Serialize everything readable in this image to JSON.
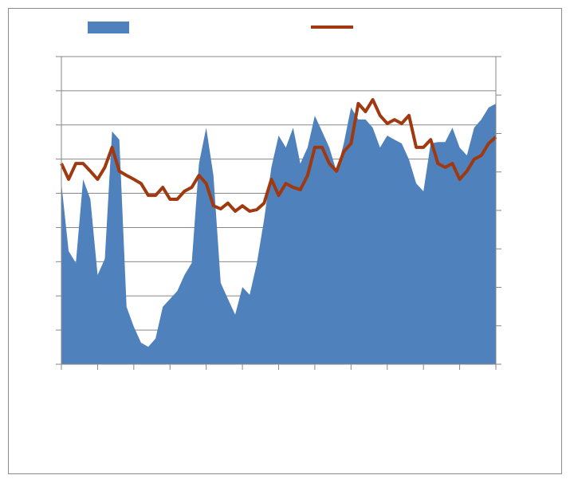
{
  "chart_data": {
    "type": "area-line",
    "x": [
      0,
      0.2,
      0.4,
      0.6,
      0.8,
      1,
      1.2,
      1.4,
      1.6,
      1.8,
      2,
      2.2,
      2.4,
      2.6,
      2.8,
      3,
      3.2,
      3.4,
      3.6,
      3.8,
      4,
      4.2,
      4.4,
      4.6,
      4.8,
      5,
      5.2,
      5.4,
      5.6,
      5.8,
      6,
      6.2,
      6.4,
      6.6,
      6.8,
      7,
      7.2,
      7.4,
      7.6,
      7.8,
      8,
      8.2,
      8.4,
      8.6,
      8.8,
      9,
      9.2,
      9.4,
      9.6,
      9.8,
      10,
      10.2,
      10.4,
      10.6,
      10.8,
      11,
      11.2,
      11.4,
      11.6,
      11.8,
      12
    ],
    "series": [
      {
        "type": "area",
        "color": "#4f81bd",
        "values": [
          5.29,
          3.31,
          2.96,
          5.41,
          4.83,
          2.61,
          3.08,
          6.81,
          6.57,
          1.68,
          1.1,
          0.63,
          0.51,
          0.75,
          1.68,
          1.91,
          2.14,
          2.61,
          2.96,
          5.87,
          6.92,
          5.52,
          2.38,
          1.91,
          1.45,
          2.26,
          2.03,
          2.96,
          4.24,
          5.76,
          6.69,
          6.34,
          6.92,
          5.87,
          6.34,
          7.27,
          6.81,
          6.34,
          5.64,
          6.46,
          7.51,
          7.16,
          7.16,
          6.92,
          6.34,
          6.69,
          6.57,
          6.46,
          5.99,
          5.29,
          5.06,
          6.46,
          6.5,
          6.5,
          6.92,
          6.34,
          6.11,
          6.92,
          7.16,
          7.51,
          7.62
        ]
      },
      {
        "type": "line",
        "axis": "y2",
        "color": "#a0390f",
        "values": [
          5.22,
          4.81,
          5.22,
          5.22,
          5.02,
          4.81,
          5.12,
          5.64,
          5.02,
          4.91,
          4.81,
          4.7,
          4.39,
          4.39,
          4.6,
          4.29,
          4.29,
          4.5,
          4.6,
          4.91,
          4.7,
          4.12,
          4.04,
          4.19,
          3.98,
          4.12,
          3.98,
          4.02,
          4.19,
          4.81,
          4.39,
          4.7,
          4.6,
          4.54,
          4.91,
          5.64,
          5.64,
          5.22,
          5.02,
          5.53,
          5.74,
          6.78,
          6.57,
          6.88,
          6.47,
          6.26,
          6.36,
          6.26,
          6.47,
          5.64,
          5.64,
          5.84,
          5.22,
          5.12,
          5.22,
          4.81,
          5.02,
          5.33,
          5.43,
          5.74,
          5.91
        ]
      }
    ],
    "xlim": [
      0,
      12
    ],
    "xticks": [
      0,
      1,
      2,
      3,
      4,
      5,
      6,
      7,
      8,
      9,
      10,
      11,
      12
    ],
    "ylim": [
      0,
      9
    ],
    "yticks": [
      0,
      1,
      2,
      3,
      4,
      5,
      6,
      7,
      8,
      9
    ],
    "y2lim": [
      0,
      8
    ],
    "y2ticks": [
      0,
      1,
      2,
      3,
      4,
      5,
      6,
      7,
      8
    ],
    "grid": true,
    "legend": "top"
  }
}
